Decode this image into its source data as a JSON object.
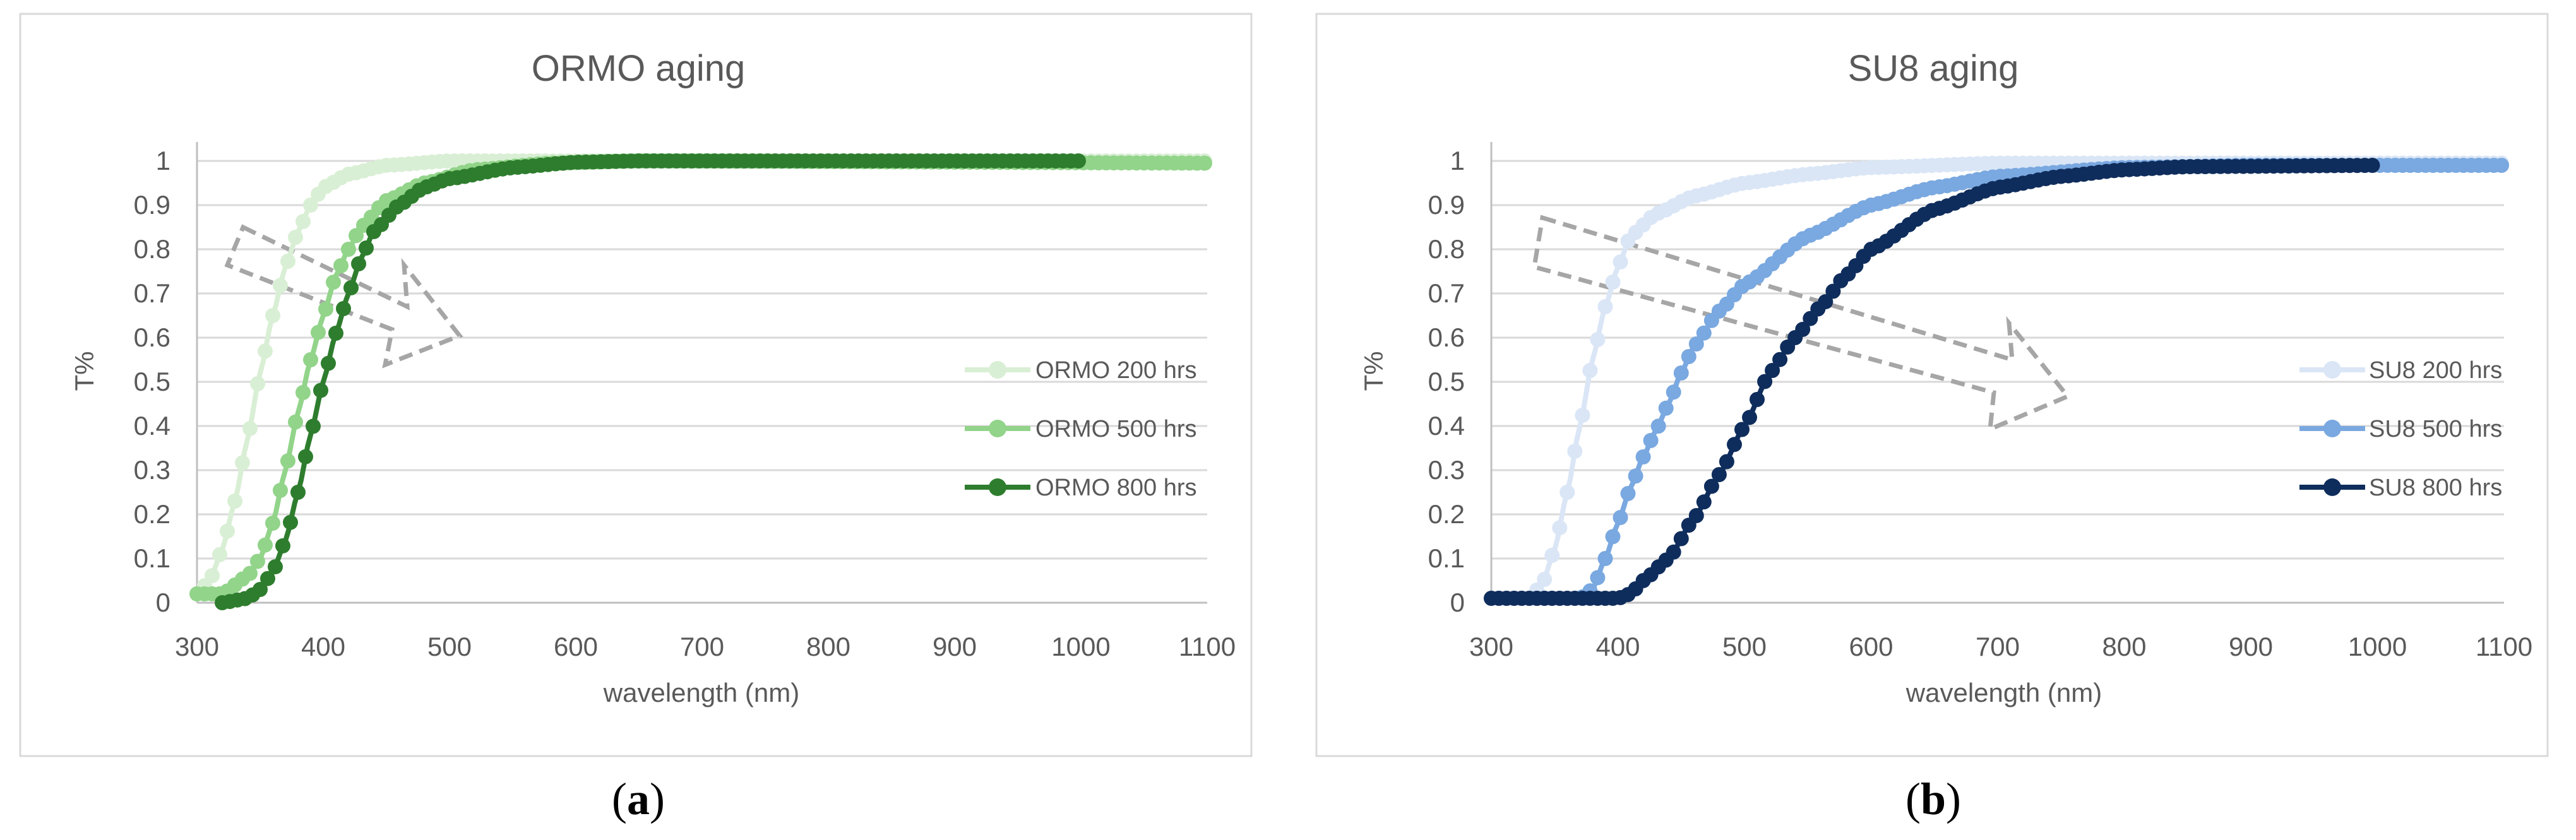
{
  "chart_data": [
    {
      "type": "line",
      "title": "ORMO aging",
      "xlabel": "wavelength (nm)",
      "ylabel": "T%",
      "xlim": [
        300,
        1100
      ],
      "ylim": [
        0,
        1
      ],
      "xticks": [
        "300",
        "400",
        "500",
        "600",
        "700",
        "800",
        "900",
        "1000",
        "1100"
      ],
      "yticks": [
        "0",
        "0.1",
        "0.2",
        "0.3",
        "0.4",
        "0.5",
        "0.6",
        "0.7",
        "0.8",
        "0.9",
        "1"
      ],
      "grid": true,
      "legend_position": "right",
      "annotation": "dashed arrow pointing down-right (aging direction)",
      "caption_letter": "a",
      "series": [
        {
          "name": "ORMO 200 hrs",
          "color": "#d9efd5",
          "x_range": [
            300,
            1100
          ],
          "points": [
            [
              300,
              0.02
            ],
            [
              310,
              0.05
            ],
            [
              320,
              0.12
            ],
            [
              330,
              0.23
            ],
            [
              340,
              0.37
            ],
            [
              350,
              0.52
            ],
            [
              360,
              0.65
            ],
            [
              370,
              0.76
            ],
            [
              380,
              0.84
            ],
            [
              390,
              0.9
            ],
            [
              400,
              0.94
            ],
            [
              420,
              0.97
            ],
            [
              450,
              0.99
            ],
            [
              500,
              1.0
            ],
            [
              1100,
              1.0
            ]
          ]
        },
        {
          "name": "ORMO 500 hrs",
          "color": "#92d48a",
          "x_range": [
            300,
            1100
          ],
          "points": [
            [
              300,
              0.02
            ],
            [
              320,
              0.02
            ],
            [
              340,
              0.06
            ],
            [
              350,
              0.1
            ],
            [
              360,
              0.18
            ],
            [
              370,
              0.3
            ],
            [
              380,
              0.43
            ],
            [
              390,
              0.55
            ],
            [
              400,
              0.65
            ],
            [
              410,
              0.74
            ],
            [
              420,
              0.8
            ],
            [
              430,
              0.85
            ],
            [
              450,
              0.91
            ],
            [
              480,
              0.95
            ],
            [
              520,
              0.98
            ],
            [
              580,
              0.995
            ],
            [
              650,
              1.0
            ],
            [
              1100,
              0.995
            ]
          ]
        },
        {
          "name": "ORMO 800 hrs",
          "color": "#2e7d2e",
          "x_range": [
            320,
            1000
          ],
          "points": [
            [
              320,
              0.0
            ],
            [
              340,
              0.01
            ],
            [
              350,
              0.03
            ],
            [
              360,
              0.07
            ],
            [
              370,
              0.14
            ],
            [
              380,
              0.25
            ],
            [
              390,
              0.38
            ],
            [
              400,
              0.5
            ],
            [
              410,
              0.61
            ],
            [
              420,
              0.7
            ],
            [
              430,
              0.78
            ],
            [
              440,
              0.84
            ],
            [
              460,
              0.9
            ],
            [
              480,
              0.94
            ],
            [
              500,
              0.96
            ],
            [
              550,
              0.985
            ],
            [
              600,
              0.997
            ],
            [
              650,
              1.0
            ],
            [
              1000,
              1.0
            ]
          ]
        }
      ]
    },
    {
      "type": "line",
      "title": "SU8 aging",
      "xlabel": "wavelength (nm)",
      "ylabel": "T%",
      "xlim": [
        300,
        1100
      ],
      "ylim": [
        0,
        1
      ],
      "xticks": [
        "300",
        "400",
        "500",
        "600",
        "700",
        "800",
        "900",
        "1000",
        "1100"
      ],
      "yticks": [
        "0",
        "0.1",
        "0.2",
        "0.3",
        "0.4",
        "0.5",
        "0.6",
        "0.7",
        "0.8",
        "0.9",
        "1"
      ],
      "grid": true,
      "legend_position": "right",
      "annotation": "dashed arrow pointing down-right (aging direction)",
      "caption_letter": "b",
      "series": [
        {
          "name": "SU8 200 hrs",
          "color": "#dae6f6",
          "x_range": [
            300,
            1100
          ],
          "points": [
            [
              300,
              0.01
            ],
            [
              330,
              0.01
            ],
            [
              340,
              0.04
            ],
            [
              350,
              0.12
            ],
            [
              360,
              0.25
            ],
            [
              370,
              0.4
            ],
            [
              380,
              0.55
            ],
            [
              390,
              0.67
            ],
            [
              400,
              0.76
            ],
            [
              410,
              0.83
            ],
            [
              430,
              0.88
            ],
            [
              460,
              0.92
            ],
            [
              500,
              0.95
            ],
            [
              550,
              0.97
            ],
            [
              600,
              0.985
            ],
            [
              700,
              0.995
            ],
            [
              1100,
              0.995
            ]
          ]
        },
        {
          "name": "SU8 500 hrs",
          "color": "#7aa8e0",
          "x_range": [
            300,
            1100
          ],
          "points": [
            [
              300,
              0.01
            ],
            [
              370,
              0.01
            ],
            [
              380,
              0.03
            ],
            [
              390,
              0.1
            ],
            [
              400,
              0.18
            ],
            [
              410,
              0.26
            ],
            [
              420,
              0.33
            ],
            [
              430,
              0.39
            ],
            [
              440,
              0.45
            ],
            [
              450,
              0.52
            ],
            [
              460,
              0.58
            ],
            [
              480,
              0.66
            ],
            [
              500,
              0.72
            ],
            [
              550,
              0.83
            ],
            [
              600,
              0.9
            ],
            [
              650,
              0.94
            ],
            [
              700,
              0.965
            ],
            [
              800,
              0.985
            ],
            [
              900,
              0.99
            ],
            [
              1100,
              0.99
            ]
          ]
        },
        {
          "name": "SU8 800 hrs",
          "color": "#0f2d5c",
          "x_range": [
            300,
            1000
          ],
          "points": [
            [
              300,
              0.01
            ],
            [
              400,
              0.01
            ],
            [
              410,
              0.02
            ],
            [
              420,
              0.05
            ],
            [
              440,
              0.1
            ],
            [
              460,
              0.19
            ],
            [
              480,
              0.29
            ],
            [
              500,
              0.4
            ],
            [
              520,
              0.52
            ],
            [
              540,
              0.6
            ],
            [
              560,
              0.67
            ],
            [
              580,
              0.74
            ],
            [
              600,
              0.8
            ],
            [
              650,
              0.89
            ],
            [
              700,
              0.94
            ],
            [
              750,
              0.965
            ],
            [
              800,
              0.98
            ],
            [
              850,
              0.987
            ],
            [
              1000,
              0.99
            ]
          ]
        }
      ]
    }
  ]
}
